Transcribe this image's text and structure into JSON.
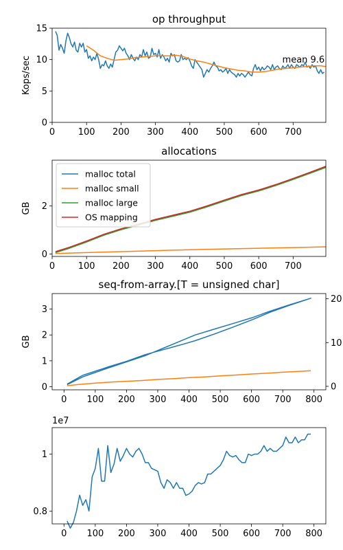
{
  "chart_data": [
    {
      "type": "line",
      "title": "op throughput",
      "ylabel": "Kops/sec",
      "xlabel": "",
      "xlim": [
        0,
        795
      ],
      "ylim": [
        0,
        15
      ],
      "xticks": [
        0,
        100,
        200,
        300,
        400,
        500,
        600,
        700
      ],
      "yticks": [
        0,
        5,
        10,
        15
      ],
      "grid": false,
      "annotation": {
        "text": "mean 9.6",
        "x": 730,
        "y": 9.4
      },
      "series": [
        {
          "color": "#1f77b4",
          "x": [
            10,
            15,
            20,
            25,
            30,
            35,
            40,
            45,
            50,
            55,
            60,
            65,
            70,
            75,
            80,
            85,
            90,
            95,
            100,
            105,
            110,
            115,
            120,
            125,
            130,
            135,
            140,
            145,
            150,
            155,
            160,
            165,
            170,
            175,
            180,
            185,
            190,
            195,
            200,
            205,
            210,
            215,
            220,
            225,
            230,
            235,
            240,
            245,
            250,
            255,
            260,
            265,
            270,
            275,
            280,
            285,
            290,
            295,
            300,
            305,
            310,
            315,
            320,
            325,
            330,
            335,
            340,
            345,
            350,
            355,
            360,
            365,
            370,
            375,
            380,
            385,
            390,
            395,
            400,
            405,
            410,
            415,
            420,
            425,
            430,
            435,
            440,
            445,
            450,
            455,
            460,
            465,
            470,
            475,
            480,
            485,
            490,
            495,
            500,
            505,
            510,
            515,
            520,
            525,
            530,
            535,
            540,
            545,
            550,
            555,
            560,
            565,
            570,
            575,
            580,
            585,
            590,
            595,
            600,
            605,
            610,
            615,
            620,
            625,
            630,
            635,
            640,
            645,
            650,
            655,
            660,
            665,
            670,
            675,
            680,
            685,
            690,
            695,
            700,
            705,
            710,
            715,
            720,
            725,
            730,
            735,
            740,
            745,
            750,
            755,
            760,
            765,
            770,
            775,
            780,
            785,
            790
          ],
          "y": [
            14.5,
            13.8,
            11.5,
            12.4,
            11.8,
            11.0,
            13.0,
            14.2,
            13.5,
            12.5,
            12.0,
            12.8,
            11.5,
            11.2,
            12.6,
            12.0,
            12.6,
            11.2,
            11.6,
            10.2,
            10.6,
            9.8,
            10.4,
            10.0,
            11.0,
            10.0,
            8.6,
            9.2,
            9.0,
            9.8,
            9.0,
            8.6,
            9.3,
            8.8,
            10.0,
            11.2,
            11.5,
            12.2,
            11.8,
            11.4,
            11.8,
            11.0,
            10.6,
            10.0,
            10.8,
            10.2,
            9.8,
            10.4,
            10.0,
            10.8,
            10.4,
            11.6,
            10.6,
            11.2,
            10.2,
            10.4,
            11.8,
            10.8,
            11.0,
            10.4,
            11.6,
            10.2,
            10.8,
            10.4,
            9.8,
            10.2,
            9.6,
            11.0,
            10.6,
            10.8,
            9.8,
            9.6,
            9.8,
            10.8,
            10.0,
            10.2,
            10.0,
            10.3,
            9.8,
            9.0,
            8.6,
            10.0,
            9.6,
            9.2,
            8.8,
            8.4,
            7.2,
            7.8,
            8.4,
            8.0,
            8.6,
            9.0,
            9.6,
            9.0,
            8.8,
            8.2,
            8.4,
            8.0,
            8.2,
            8.6,
            7.8,
            8.4,
            8.0,
            7.8,
            7.6,
            7.2,
            7.8,
            7.4,
            7.8,
            7.6,
            7.2,
            7.6,
            8.0,
            7.6,
            7.4,
            8.6,
            9.2,
            8.4,
            8.8,
            8.2,
            8.8,
            8.4,
            8.6,
            9.0,
            8.8,
            8.4,
            9.2,
            8.4,
            8.8,
            9.0,
            8.6,
            8.4,
            9.0,
            8.6,
            8.8,
            9.2,
            8.6,
            9.2,
            8.8,
            8.6,
            9.2,
            9.0,
            8.8,
            9.2,
            9.0,
            9.6,
            8.8,
            9.0,
            8.6,
            9.2,
            8.8,
            9.0,
            8.2,
            7.8,
            8.4,
            7.8,
            8.0
          ]
        },
        {
          "color": "#ff7f0e",
          "x": [
            100,
            120,
            140,
            160,
            180,
            200,
            220,
            240,
            260,
            280,
            300,
            320,
            340,
            360,
            380,
            400,
            420,
            440,
            460,
            480,
            500,
            520,
            540,
            560,
            580,
            600,
            620,
            640,
            660,
            680,
            700,
            720,
            740,
            760,
            780,
            795
          ],
          "y": [
            12.2,
            11.5,
            10.6,
            10.2,
            9.9,
            10.0,
            10.1,
            10.3,
            10.4,
            10.5,
            10.6,
            10.6,
            10.6,
            10.7,
            10.5,
            10.1,
            9.8,
            9.6,
            9.3,
            9.0,
            8.7,
            8.5,
            8.3,
            8.2,
            8.0,
            8.0,
            8.1,
            8.3,
            8.5,
            8.6,
            8.7,
            8.8,
            8.9,
            9.0,
            9.0,
            8.9
          ]
        }
      ]
    },
    {
      "type": "line",
      "title": "allocations",
      "ylabel": "GB",
      "xlabel": "",
      "xlim": [
        0,
        795
      ],
      "ylim": [
        -0.1,
        3.9
      ],
      "xticks": [
        0,
        100,
        200,
        300,
        400,
        500,
        600,
        700
      ],
      "yticks": [
        0,
        2
      ],
      "grid": false,
      "legend": "top-left",
      "series": [
        {
          "name": "malloc total",
          "color": "#1f77b4",
          "x": [
            10,
            50,
            100,
            150,
            200,
            250,
            300,
            350,
            400,
            450,
            500,
            550,
            600,
            650,
            700,
            750,
            795
          ],
          "y": [
            0.08,
            0.26,
            0.52,
            0.8,
            1.03,
            1.22,
            1.42,
            1.59,
            1.76,
            1.98,
            2.22,
            2.45,
            2.64,
            2.87,
            3.12,
            3.38,
            3.62
          ]
        },
        {
          "name": "malloc small",
          "color": "#ff7f0e",
          "x": [
            10,
            100,
            200,
            300,
            400,
            500,
            600,
            700,
            795
          ],
          "y": [
            0.02,
            0.06,
            0.1,
            0.14,
            0.18,
            0.21,
            0.24,
            0.27,
            0.3
          ]
        },
        {
          "name": "malloc large",
          "color": "#2ca02c",
          "x": [
            10,
            50,
            100,
            150,
            200,
            250,
            300,
            350,
            400,
            450,
            500,
            550,
            600,
            650,
            700,
            750,
            795
          ],
          "y": [
            0.06,
            0.24,
            0.5,
            0.78,
            1.01,
            1.2,
            1.4,
            1.57,
            1.74,
            1.96,
            2.2,
            2.43,
            2.62,
            2.85,
            3.1,
            3.36,
            3.6
          ]
        },
        {
          "name": "OS mapping",
          "color": "#d62728",
          "x": [
            10,
            50,
            100,
            150,
            200,
            250,
            300,
            350,
            400,
            450,
            500,
            550,
            600,
            650,
            700,
            750,
            795
          ],
          "y": [
            0.1,
            0.28,
            0.54,
            0.82,
            1.05,
            1.24,
            1.44,
            1.61,
            1.78,
            2.0,
            2.24,
            2.47,
            2.66,
            2.89,
            3.14,
            3.4,
            3.65
          ]
        }
      ]
    },
    {
      "type": "line",
      "title": "seq-from-array.[T = unsigned char]",
      "ylabel": "GB",
      "xlabel": "",
      "xlim": [
        -38,
        838
      ],
      "ylim": [
        -0.12,
        3.6
      ],
      "xticks": [
        0,
        100,
        200,
        300,
        400,
        500,
        600,
        700,
        800
      ],
      "yticks": [
        0,
        1,
        2,
        3
      ],
      "ylim_right": [
        -8,
        212
      ],
      "yticks_right": [
        0,
        100,
        200
      ],
      "yticklabels_right": [
        "0",
        "10",
        "20"
      ],
      "grid": false,
      "series": [
        {
          "color": "#1f77b4",
          "x": [
            10,
            60,
            140,
            200,
            260,
            320,
            380,
            420,
            480,
            540,
            600,
            660,
            720,
            790,
            720,
            660,
            600,
            540,
            480,
            420,
            380,
            320,
            260,
            200,
            140,
            60,
            10
          ],
          "y": [
            0.08,
            0.38,
            0.72,
            0.96,
            1.2,
            1.5,
            1.8,
            2.0,
            2.22,
            2.44,
            2.66,
            2.92,
            3.16,
            3.42,
            3.14,
            2.88,
            2.58,
            2.3,
            2.03,
            1.78,
            1.64,
            1.44,
            1.24,
            0.98,
            0.76,
            0.44,
            0.1
          ]
        },
        {
          "color": "#ff7f0e",
          "x": [
            10,
            50,
            100,
            150,
            200,
            250,
            300,
            350,
            400,
            450,
            500,
            550,
            600,
            650,
            700,
            750,
            790
          ],
          "y": [
            0.04,
            0.09,
            0.14,
            0.18,
            0.21,
            0.24,
            0.28,
            0.31,
            0.35,
            0.38,
            0.42,
            0.45,
            0.49,
            0.52,
            0.56,
            0.59,
            0.62
          ]
        }
      ]
    },
    {
      "type": "line",
      "title": "",
      "ylabel": "",
      "xlabel": "",
      "offset_label": "1e7",
      "xlim": [
        -38,
        838
      ],
      "ylim": [
        0.755,
        1.093
      ],
      "xticks": [
        0,
        100,
        200,
        300,
        400,
        500,
        600,
        700,
        800
      ],
      "yticks": [
        0.8,
        1.0
      ],
      "grid": false,
      "series": [
        {
          "color": "#1f77b4",
          "x": [
            10,
            20,
            30,
            40,
            50,
            60,
            70,
            80,
            90,
            100,
            110,
            120,
            130,
            140,
            150,
            160,
            170,
            180,
            190,
            200,
            210,
            220,
            230,
            240,
            250,
            260,
            270,
            280,
            290,
            300,
            310,
            320,
            330,
            340,
            350,
            360,
            370,
            380,
            390,
            400,
            410,
            420,
            430,
            440,
            450,
            460,
            470,
            480,
            490,
            500,
            510,
            520,
            530,
            540,
            550,
            560,
            570,
            580,
            590,
            600,
            610,
            620,
            630,
            640,
            650,
            660,
            670,
            680,
            690,
            700,
            710,
            720,
            730,
            740,
            750,
            760,
            770,
            780,
            790
          ],
          "y": [
            0.765,
            0.74,
            0.76,
            0.8,
            0.856,
            0.82,
            0.84,
            0.8,
            0.92,
            0.95,
            1.02,
            0.905,
            0.905,
            1.03,
            0.935,
            0.965,
            1.02,
            0.975,
            0.995,
            1.02,
            1.0,
            0.99,
            1.01,
            1.02,
            1.0,
            0.97,
            0.97,
            0.95,
            0.945,
            0.94,
            0.9,
            0.88,
            0.91,
            0.9,
            0.88,
            0.9,
            0.88,
            0.88,
            0.855,
            0.86,
            0.87,
            0.89,
            0.9,
            0.895,
            0.9,
            0.93,
            0.93,
            0.94,
            0.95,
            0.96,
            0.98,
            1.01,
            0.995,
            0.99,
            0.995,
            0.98,
            0.97,
            0.97,
            1.0,
            0.995,
            1.0,
            1.0,
            1.01,
            1.03,
            1.01,
            1.02,
            1.01,
            1.01,
            1.02,
            1.03,
            1.06,
            1.04,
            1.04,
            1.06,
            1.04,
            1.05,
            1.05,
            1.07,
            1.07
          ]
        }
      ]
    }
  ]
}
